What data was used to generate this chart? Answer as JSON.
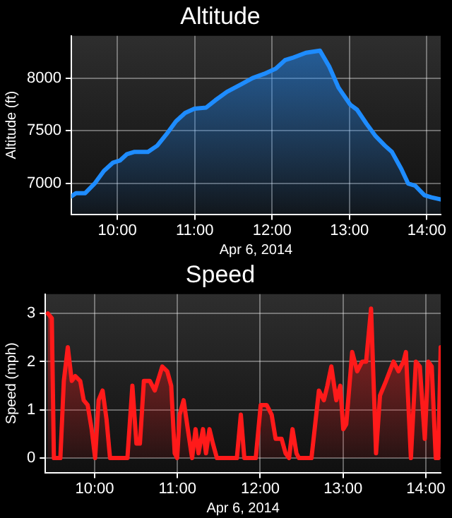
{
  "chart_data": [
    {
      "type": "area",
      "title": "Altitude",
      "xlabel": "Apr 6, 2014",
      "ylabel": "Altitude (ft)",
      "grid": true,
      "line_style": "solid",
      "marker": "none",
      "legend": false,
      "xlim": [
        9.405,
        14.18
      ],
      "xticks": [
        {
          "value": 10,
          "label": "10:00"
        },
        {
          "value": 11,
          "label": "11:00"
        },
        {
          "value": 12,
          "label": "12:00"
        },
        {
          "value": 13,
          "label": "13:00"
        },
        {
          "value": 14,
          "label": "14:00"
        }
      ],
      "ylim": [
        6710,
        8400
      ],
      "yticks": [
        7000,
        7500,
        8000
      ],
      "x": [
        9.405,
        9.465,
        9.585,
        9.706,
        9.826,
        9.946,
        10.036,
        10.126,
        10.216,
        10.396,
        10.516,
        10.637,
        10.757,
        10.877,
        10.997,
        11.147,
        11.267,
        11.417,
        11.598,
        11.748,
        11.898,
        12.048,
        12.168,
        12.258,
        12.438,
        12.619,
        12.739,
        12.859,
        13.009,
        13.099,
        13.219,
        13.339,
        13.459,
        13.55,
        13.67,
        13.76,
        13.85,
        13.97,
        14.06,
        14.18
      ],
      "series": [
        {
          "color": "#1e8cff",
          "values": [
            6880,
            6910,
            6910,
            7000,
            7120,
            7200,
            7220,
            7280,
            7300,
            7300,
            7360,
            7470,
            7590,
            7670,
            7710,
            7720,
            7790,
            7870,
            7940,
            8000,
            8040,
            8090,
            8170,
            8190,
            8240,
            8260,
            8110,
            7910,
            7750,
            7700,
            7570,
            7450,
            7360,
            7300,
            7140,
            7000,
            6980,
            6890,
            6870,
            6850
          ]
        }
      ]
    },
    {
      "type": "area",
      "title": "Speed",
      "xlabel": "Apr 6, 2014",
      "ylabel": "Speed (mph)",
      "grid": true,
      "line_style": "solid",
      "marker": "none",
      "legend": false,
      "xlim": [
        9.405,
        14.18
      ],
      "xticks": [
        {
          "value": 10,
          "label": "10:00"
        },
        {
          "value": 11,
          "label": "11:00"
        },
        {
          "value": 12,
          "label": "12:00"
        },
        {
          "value": 13,
          "label": "13:00"
        },
        {
          "value": 14,
          "label": "14:00"
        }
      ],
      "ylim": [
        -0.3,
        3.4
      ],
      "yticks": [
        0,
        1,
        2,
        3
      ],
      "x": [
        9.435,
        9.483,
        9.508,
        9.586,
        9.628,
        9.676,
        9.724,
        9.766,
        9.826,
        9.868,
        9.916,
        9.964,
        10.006,
        10.048,
        10.096,
        10.144,
        10.186,
        10.396,
        10.456,
        10.505,
        10.547,
        10.595,
        10.667,
        10.727,
        10.817,
        10.877,
        10.925,
        10.967,
        10.997,
        11.027,
        11.075,
        11.117,
        11.177,
        11.219,
        11.255,
        11.309,
        11.345,
        11.387,
        11.429,
        11.477,
        11.718,
        11.766,
        11.808,
        11.946,
        12.006,
        12.078,
        12.138,
        12.186,
        12.258,
        12.306,
        12.348,
        12.39,
        12.438,
        12.468,
        12.619,
        12.709,
        12.769,
        12.811,
        12.859,
        12.919,
        12.967,
        13.003,
        13.039,
        13.111,
        13.171,
        13.231,
        13.279,
        13.339,
        13.399,
        13.447,
        13.52,
        13.61,
        13.67,
        13.73,
        13.76,
        13.82,
        13.88,
        13.928,
        13.988,
        14.03,
        14.072,
        14.12,
        14.15,
        14.18
      ],
      "series": [
        {
          "color": "#ff1a1a",
          "values": [
            3.0,
            2.9,
            0,
            0,
            1.6,
            2.3,
            1.6,
            1.7,
            1.6,
            1.2,
            1.1,
            0.6,
            0,
            1.2,
            1.4,
            0.8,
            0,
            0,
            1.5,
            0.3,
            0.3,
            1.6,
            1.6,
            1.4,
            1.9,
            1.8,
            1.5,
            0.1,
            0,
            0.9,
            1.2,
            0.7,
            0,
            0.6,
            0.1,
            0.6,
            0.1,
            0.6,
            0.3,
            0,
            0,
            0.9,
            0,
            0,
            1.1,
            1.1,
            0.9,
            0.4,
            0.4,
            0.1,
            0,
            0.6,
            0.1,
            0,
            0,
            1.4,
            1.2,
            1.5,
            1.9,
            1.2,
            1.5,
            0.6,
            0.7,
            2.2,
            1.8,
            2.0,
            2.0,
            3.1,
            0.1,
            1.3,
            1.6,
            2.0,
            1.8,
            2.0,
            2.2,
            0,
            2.0,
            1.9,
            0.4,
            2.0,
            1.9,
            0,
            0,
            2.3
          ]
        }
      ]
    }
  ]
}
